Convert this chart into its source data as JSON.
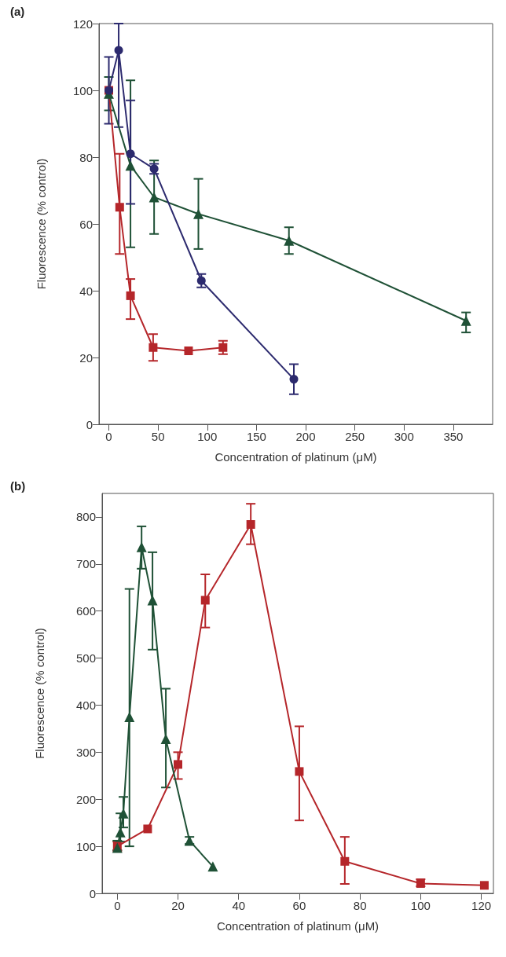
{
  "chart_data": [
    {
      "type": "line",
      "title": "(a)",
      "xlabel": "Concentration of platinum (μM)",
      "ylabel": "Fluorescence (% control)",
      "xlim": [
        -10,
        390
      ],
      "xticks": [
        0,
        50,
        100,
        150,
        200,
        250,
        300,
        350
      ],
      "ylim": [
        0,
        120
      ],
      "yticks": [
        0,
        20,
        40,
        60,
        80,
        100,
        120
      ],
      "grid": false,
      "legend": false,
      "series": [
        {
          "color": "#b5262a",
          "marker": "square",
          "x": [
            0,
            11,
            22,
            45,
            81,
            116
          ],
          "values": [
            100,
            65,
            38.5,
            23,
            22,
            23
          ],
          "errors": [
            null,
            [
              51,
              81
            ],
            [
              31.5,
              43.5
            ],
            [
              19,
              27
            ],
            null,
            [
              21,
              25
            ]
          ]
        },
        {
          "color": "#1f5136",
          "marker": "triangle",
          "x": [
            0,
            22,
            46,
            91,
            183,
            363
          ],
          "values": [
            99,
            77.5,
            68,
            63,
            55,
            31
          ],
          "errors": [
            [
              94,
              104
            ],
            [
              53,
              103
            ],
            [
              57,
              79
            ],
            [
              52.5,
              73.5
            ],
            [
              51,
              59
            ],
            [
              27.5,
              33.5
            ]
          ]
        },
        {
          "color": "#2c2a6e",
          "marker": "circle",
          "x": [
            0,
            10,
            22,
            46,
            94,
            188
          ],
          "values": [
            100,
            112,
            81,
            76.5,
            43,
            13.5
          ],
          "errors": [
            [
              90,
              110
            ],
            [
              89,
              120
            ],
            [
              66,
              97
            ],
            [
              75,
              78
            ],
            [
              41,
              45
            ],
            [
              9,
              18
            ]
          ]
        }
      ]
    },
    {
      "type": "line",
      "title": "(b)",
      "xlabel": "Concentration of platinum (μM)",
      "ylabel": "Fluorescence (% control)",
      "xlim": [
        -5,
        124
      ],
      "xticks": [
        0,
        20,
        40,
        60,
        80,
        100,
        120
      ],
      "ylim": [
        0,
        850
      ],
      "yticks": [
        0,
        100,
        200,
        300,
        400,
        500,
        600,
        700,
        800
      ],
      "grid": false,
      "legend": false,
      "series": [
        {
          "color": "#b5262a",
          "marker": "square",
          "x": [
            0,
            10,
            20,
            29,
            44,
            60,
            75,
            100,
            121
          ],
          "values": [
            100,
            137,
            274,
            623,
            784,
            259,
            68,
            21,
            17
          ],
          "errors": [
            [
              90,
              110
            ],
            null,
            [
              243,
              300
            ],
            [
              565,
              678
            ],
            [
              742,
              828
            ],
            [
              155,
              355
            ],
            [
              20,
              120
            ],
            [
              15,
              30
            ],
            null
          ]
        },
        {
          "color": "#1f5136",
          "marker": "triangle",
          "x": [
            0,
            1,
            2,
            4,
            8,
            11.6,
            16,
            23.8,
            31.5
          ],
          "values": [
            97,
            130,
            170,
            375,
            736,
            623,
            328,
            112,
            57
          ],
          "errors": [
            [
              92,
              112
            ],
            [
              110,
              170
            ],
            [
              140,
              205
            ],
            [
              100,
              647
            ],
            [
              690,
              780
            ],
            [
              518,
              725
            ],
            [
              225,
              435
            ],
            [
              105,
              120
            ],
            null
          ]
        }
      ]
    }
  ]
}
